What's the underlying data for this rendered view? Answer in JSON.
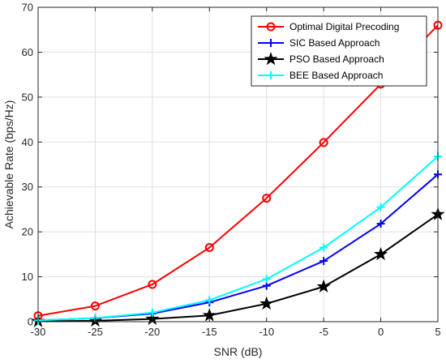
{
  "chart_data": {
    "type": "line",
    "title": "",
    "xlabel": "SNR (dB)",
    "ylabel": "Achievable Rate (bps/Hz)",
    "xlim": [
      -30,
      5
    ],
    "ylim": [
      0,
      70
    ],
    "x_ticks": [
      -30,
      -25,
      -20,
      -15,
      -10,
      -5,
      0,
      5
    ],
    "y_ticks": [
      0,
      10,
      20,
      30,
      40,
      50,
      60,
      70
    ],
    "grid": true,
    "legend_position": "top-right",
    "x": [
      -30,
      -25,
      -20,
      -15,
      -10,
      -5,
      0,
      5
    ],
    "series": [
      {
        "name": "Optimal Digital Precoding",
        "color": "#ff0000",
        "marker": "circle",
        "values": [
          1.3,
          3.5,
          8.3,
          16.5,
          27.5,
          39.9,
          52.9,
          66.0
        ]
      },
      {
        "name": "SIC Based Approach",
        "color": "#0000ff",
        "marker": "plus",
        "values": [
          0.3,
          0.8,
          1.8,
          4.3,
          8.0,
          13.5,
          21.8,
          32.8
        ]
      },
      {
        "name": "PSO Based Approach",
        "color": "#000000",
        "marker": "star",
        "values": [
          0.1,
          0.2,
          0.6,
          1.4,
          4.0,
          7.8,
          15.0,
          23.9
        ]
      },
      {
        "name": "BEE Based Approach",
        "color": "#00ffff",
        "marker": "plus",
        "values": [
          0.3,
          0.8,
          2.0,
          4.8,
          9.5,
          16.5,
          25.5,
          36.8
        ]
      }
    ]
  }
}
